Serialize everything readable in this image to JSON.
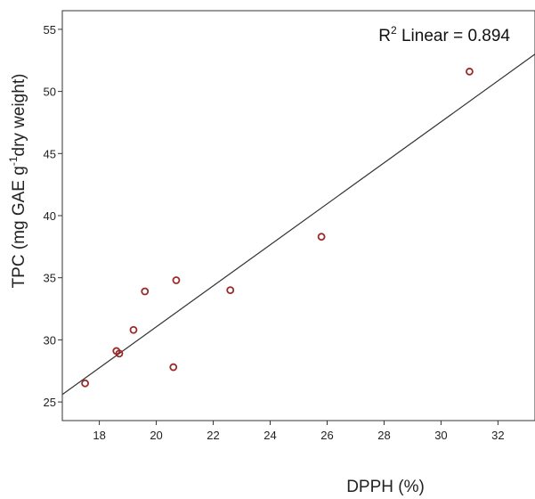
{
  "chart_data": {
    "type": "scatter",
    "xlabel": "DPPH (%)",
    "ylabel_parts": {
      "before": "TPC (mg GAE g",
      "superscript": "-1",
      "after": "dry weight)"
    },
    "annotation_parts": {
      "before": "R",
      "superscript": "2",
      "after": " Linear = 0.894"
    },
    "xlim": [
      16.7,
      33.3
    ],
    "ylim": [
      23.5,
      56.5
    ],
    "x_ticks": [
      "18",
      "20",
      "22",
      "24",
      "26",
      "28",
      "30",
      "32"
    ],
    "y_ticks": [
      "25",
      "30",
      "35",
      "40",
      "45",
      "50",
      "55"
    ],
    "points": [
      {
        "x": 17.5,
        "y": 26.5
      },
      {
        "x": 18.6,
        "y": 29.1
      },
      {
        "x": 18.7,
        "y": 28.9
      },
      {
        "x": 19.2,
        "y": 30.8
      },
      {
        "x": 19.6,
        "y": 33.9
      },
      {
        "x": 20.6,
        "y": 27.8
      },
      {
        "x": 20.7,
        "y": 34.8
      },
      {
        "x": 22.6,
        "y": 34.0
      },
      {
        "x": 25.8,
        "y": 38.3
      },
      {
        "x": 31.0,
        "y": 51.6
      }
    ],
    "fit_line": {
      "type": "linear",
      "start": {
        "x": 16.7,
        "y": 25.6
      },
      "end": {
        "x": 33.3,
        "y": 53.0
      }
    },
    "grid": false,
    "colors": {
      "marker": "#9b2a2a",
      "fit_line": "#333333",
      "axis": "#333333"
    }
  }
}
